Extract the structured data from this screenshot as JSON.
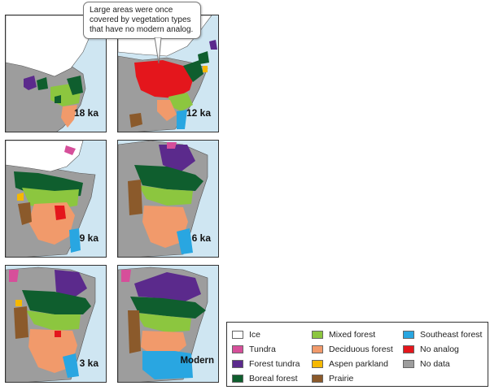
{
  "figure": {
    "callout_text": "Large areas were once covered by vegetation types that have no modern analog."
  },
  "panels": [
    {
      "id": "18ka",
      "label": "18 ka"
    },
    {
      "id": "12ka",
      "label": "12 ka"
    },
    {
      "id": "9ka",
      "label": "9 ka"
    },
    {
      "id": "6ka",
      "label": "6 ka"
    },
    {
      "id": "3ka",
      "label": "3 ka"
    },
    {
      "id": "modern",
      "label": "Modern"
    }
  ],
  "legend": {
    "items": [
      {
        "label": "Ice",
        "color": "#ffffff"
      },
      {
        "label": "Tundra",
        "color": "#d64f9a"
      },
      {
        "label": "Forest tundra",
        "color": "#5b2a8c"
      },
      {
        "label": "Boreal forest",
        "color": "#0f5e2e"
      },
      {
        "label": "Mixed forest",
        "color": "#8cc63f"
      },
      {
        "label": "Deciduous forest",
        "color": "#f19a6b"
      },
      {
        "label": "Aspen parkland",
        "color": "#f5b800"
      },
      {
        "label": "Prairie",
        "color": "#8b5a2b"
      },
      {
        "label": "Southeast forest",
        "color": "#29a6e1"
      },
      {
        "label": "No analog",
        "color": "#e4161c"
      },
      {
        "label": "No data",
        "color": "#9d9d9d"
      }
    ]
  },
  "colors": {
    "ocean": "#cfe6f2",
    "land_outline": "#555555"
  }
}
